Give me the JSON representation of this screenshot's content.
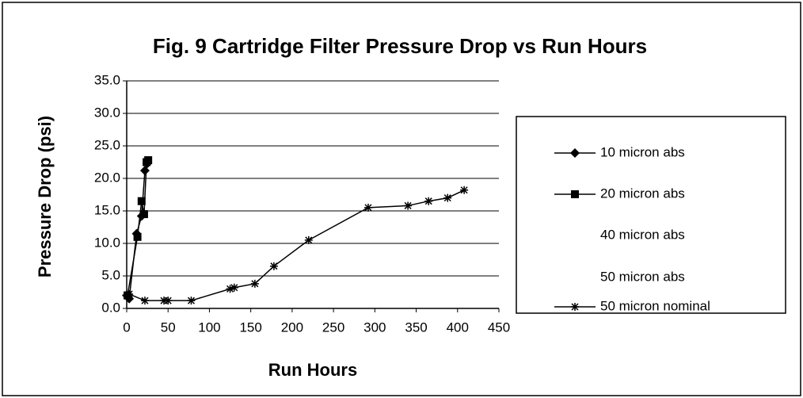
{
  "chart_data": {
    "type": "line",
    "title": "Fig. 9  Cartridge Filter Pressure Drop vs Run Hours",
    "x_label": "Run Hours",
    "y_label": "Pressure Drop (psi)",
    "xlim": [
      0,
      450
    ],
    "xticks": [
      0,
      50,
      100,
      150,
      200,
      250,
      300,
      350,
      400,
      450
    ],
    "ylim": [
      0,
      35
    ],
    "yticks": [
      {
        "value": 0,
        "label": "0.0"
      },
      {
        "value": 5,
        "label": "5.0"
      },
      {
        "value": 10,
        "label": "10.0"
      },
      {
        "value": 15,
        "label": "15.0"
      },
      {
        "value": 20,
        "label": "20.0"
      },
      {
        "value": 25,
        "label": "25.0"
      },
      {
        "value": 30,
        "label": "30.0"
      },
      {
        "value": 35,
        "label": "35.0"
      }
    ],
    "grid": true,
    "legend": "right",
    "series": [
      {
        "name": "10 micron abs",
        "color": "#000000",
        "marker": "diamond",
        "x": [
          0,
          3,
          12,
          18,
          22,
          25
        ],
        "values": [
          2,
          1.5,
          11.5,
          14.2,
          21.2,
          22.3
        ]
      },
      {
        "name": "20 micron abs",
        "color": "#000000",
        "marker": "square",
        "x": [
          1,
          13,
          18,
          21,
          24,
          26
        ],
        "values": [
          2,
          11,
          16.5,
          14.5,
          22.5,
          22.8
        ]
      },
      {
        "name": "40 micron abs",
        "color": null,
        "marker": null,
        "x": [],
        "values": []
      },
      {
        "name": "50 micron abs",
        "color": null,
        "marker": null,
        "x": [],
        "values": []
      },
      {
        "name": "50 micron nominal",
        "color": "#000000",
        "marker": "star",
        "x": [
          3,
          22,
          45,
          50,
          78,
          125,
          130,
          155,
          178,
          220,
          292,
          340,
          365,
          388,
          408
        ],
        "values": [
          2.2,
          1.2,
          1.2,
          1.2,
          1.2,
          3,
          3.2,
          3.8,
          6.5,
          10.5,
          15.5,
          15.8,
          16.5,
          17,
          18.2
        ]
      }
    ]
  }
}
